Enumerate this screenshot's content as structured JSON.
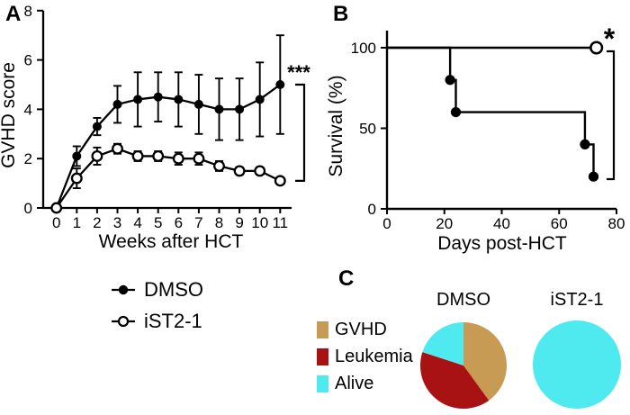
{
  "figure": {
    "panels": {
      "a": "A",
      "b": "B",
      "c": "C"
    }
  },
  "treatment_legend": {
    "items": [
      {
        "label": "DMSO",
        "marker": "filled-circle"
      },
      {
        "label": "iST2-1",
        "marker": "open-circle"
      }
    ]
  },
  "pie_legend": {
    "items": [
      {
        "label": "GVHD",
        "color": "#C79B54"
      },
      {
        "label": "Leukemia",
        "color": "#A81212"
      },
      {
        "label": "Alive",
        "color": "#4FE9F0"
      }
    ]
  },
  "colors": {
    "ink": "#000000",
    "background": "#FFFFFF",
    "gvhd": "#C79B54",
    "leukemia": "#A81212",
    "alive": "#4FE9F0"
  },
  "chart_data": [
    {
      "id": "gvhd-score",
      "type": "line",
      "title": "",
      "xlabel": "Weeks after HCT",
      "ylabel": "GVHD score",
      "x": [
        0,
        1,
        2,
        3,
        4,
        5,
        6,
        7,
        8,
        9,
        10,
        11
      ],
      "xlim": [
        0,
        11
      ],
      "ylim": [
        0,
        8
      ],
      "yticks": [
        0,
        2,
        4,
        6,
        8
      ],
      "grid": false,
      "significance": "***",
      "series": [
        {
          "name": "DMSO",
          "marker": "filled-circle",
          "values": [
            0,
            2.1,
            3.3,
            4.2,
            4.4,
            4.5,
            4.4,
            4.2,
            4.0,
            4.0,
            4.4,
            5.0
          ],
          "errors": [
            0,
            0.4,
            0.35,
            0.75,
            1.1,
            1.0,
            1.1,
            1.2,
            1.25,
            1.25,
            1.5,
            2.0
          ]
        },
        {
          "name": "iST2-1",
          "marker": "open-circle",
          "values": [
            0,
            1.2,
            2.1,
            2.4,
            2.1,
            2.1,
            2.0,
            2.0,
            1.7,
            1.5,
            1.5,
            1.1
          ],
          "errors": [
            0,
            0.4,
            0.35,
            0.2,
            0.2,
            0.2,
            0.25,
            0.25,
            0.2,
            0.15,
            0.15,
            0
          ]
        }
      ]
    },
    {
      "id": "survival",
      "type": "step-line",
      "title": "",
      "xlabel": "Days post-HCT",
      "ylabel": "Survival (%)",
      "xlim": [
        0,
        80
      ],
      "xticks": [
        0,
        20,
        40,
        60,
        80
      ],
      "ylim": [
        0,
        100
      ],
      "yticks": [
        0,
        50,
        100
      ],
      "grid": false,
      "significance": "*",
      "series": [
        {
          "name": "DMSO",
          "marker": "filled-circle",
          "points": [
            [
              0,
              100
            ],
            [
              22,
              100
            ],
            [
              22,
              80
            ],
            [
              24,
              80
            ],
            [
              24,
              60
            ],
            [
              69,
              60
            ],
            [
              69,
              40
            ],
            [
              72,
              40
            ],
            [
              72,
              20
            ],
            [
              73,
              20
            ]
          ],
          "marker_points": [
            [
              22,
              80
            ],
            [
              24,
              60
            ],
            [
              69,
              40
            ],
            [
              72,
              20
            ]
          ]
        },
        {
          "name": "iST2-1",
          "marker": "open-circle",
          "points": [
            [
              0,
              100
            ],
            [
              73,
              100
            ]
          ],
          "marker_points": [
            [
              73,
              100
            ]
          ]
        }
      ]
    },
    {
      "id": "outcome-dmso",
      "type": "pie",
      "title": "DMSO",
      "labels": [
        "GVHD",
        "Leukemia",
        "Alive"
      ],
      "values": [
        40,
        40,
        20
      ],
      "colors": [
        "#C79B54",
        "#A81212",
        "#4FE9F0"
      ]
    },
    {
      "id": "outcome-ist21",
      "type": "pie",
      "title": "iST2-1",
      "labels": [
        "Alive"
      ],
      "values": [
        100
      ],
      "colors": [
        "#4FE9F0"
      ]
    }
  ]
}
